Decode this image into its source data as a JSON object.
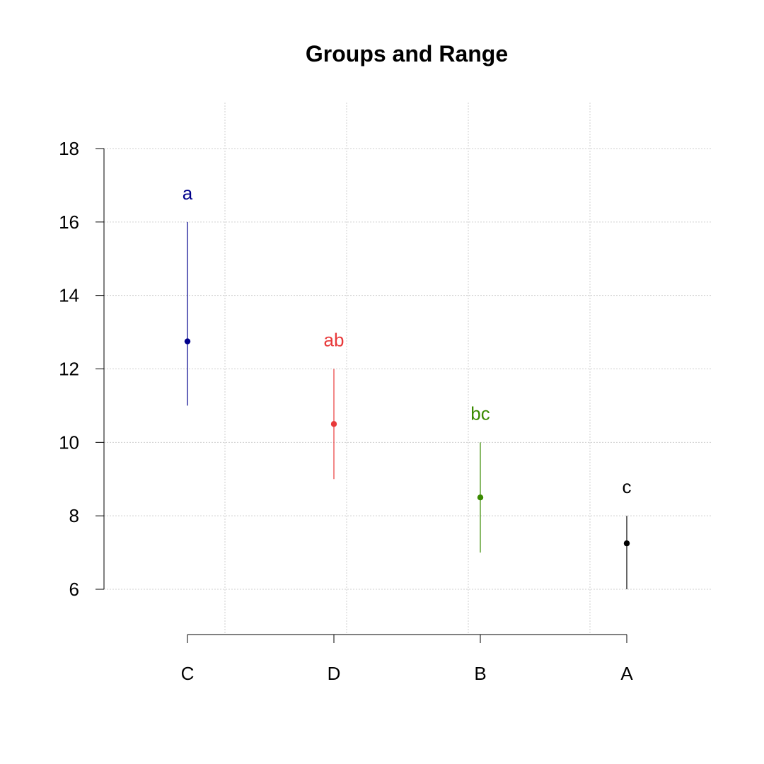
{
  "chart_data": {
    "type": "scatter",
    "title": "Groups and Range",
    "xlabel": "",
    "ylabel": "",
    "categories": [
      "C",
      "D",
      "B",
      "A"
    ],
    "points": [
      {
        "category": "C",
        "mean": 12.75,
        "low": 11,
        "high": 16,
        "group": "a",
        "color": "#00008b"
      },
      {
        "category": "D",
        "mean": 10.5,
        "low": 9,
        "high": 12,
        "group": "ab",
        "color": "#e8393a"
      },
      {
        "category": "B",
        "mean": 8.5,
        "low": 7,
        "high": 10,
        "group": "bc",
        "color": "#3a8a00"
      },
      {
        "category": "A",
        "mean": 7.25,
        "low": 6,
        "high": 8,
        "group": "c",
        "color": "#000000"
      }
    ],
    "ylim": [
      6,
      18
    ],
    "yticks": [
      6,
      8,
      10,
      12,
      14,
      16,
      18
    ],
    "grid": true,
    "legend": "none"
  }
}
